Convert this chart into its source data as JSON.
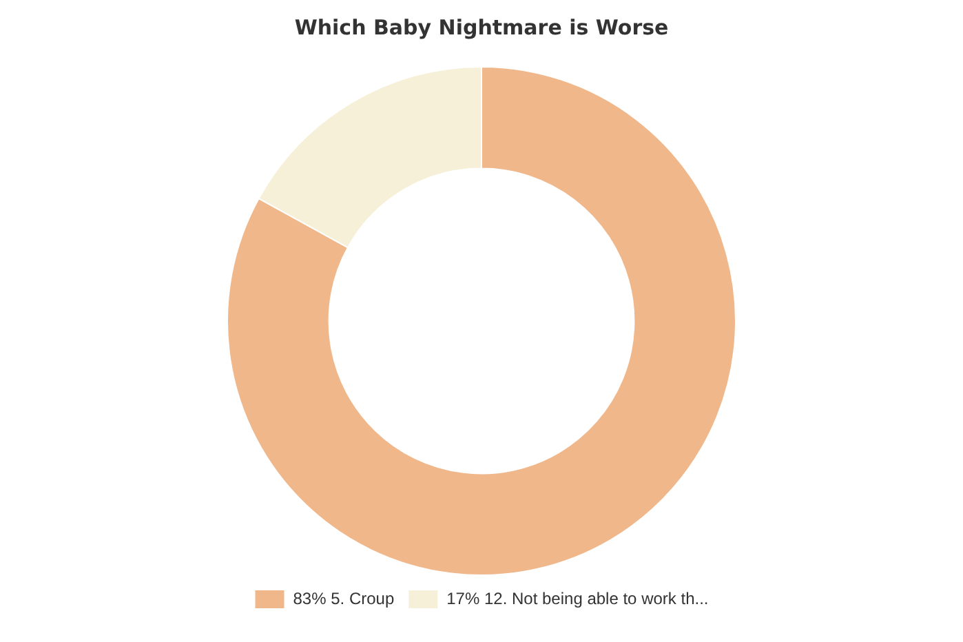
{
  "chart_data": {
    "type": "donut",
    "title": "Which Baby Nightmare is Worse",
    "categories": [
      "83% 5. Croup",
      "17% 12. Not being able to work th..."
    ],
    "values": [
      83,
      17
    ],
    "colors": [
      "#f0b78b",
      "#f5f0d7"
    ],
    "legend": "bottom"
  }
}
